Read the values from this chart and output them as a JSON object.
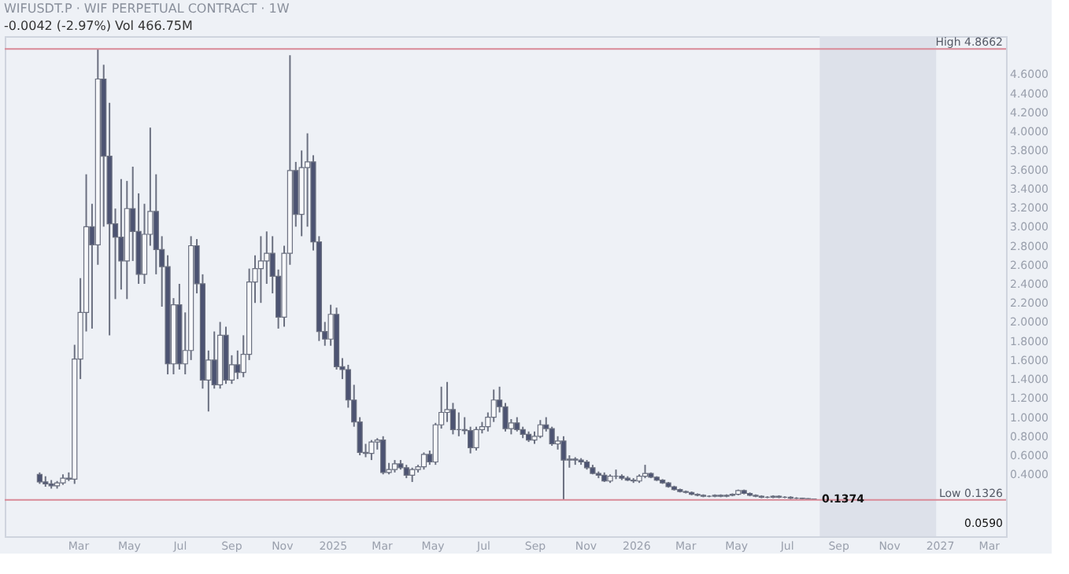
{
  "chart_data": {
    "type": "candlestick",
    "title": "WIFUSDT.P · WIF PERPETUAL CONTRACT · 1W",
    "subtitle": "-0.0042 (-2.97%)   Vol 466.75M",
    "x": [
      "2024-01-15",
      "2024-01-22",
      "2024-01-29",
      "2024-02-05",
      "2024-02-12",
      "2024-02-19",
      "2024-02-26",
      "2024-03-04",
      "2024-03-11",
      "2024-03-18",
      "2024-03-25",
      "2024-04-01",
      "2024-04-08",
      "2024-04-15",
      "2024-04-22",
      "2024-04-29",
      "2024-05-06",
      "2024-05-13",
      "2024-05-20",
      "2024-05-27",
      "2024-06-03",
      "2024-06-10",
      "2024-06-17",
      "2024-06-24",
      "2024-07-01",
      "2024-07-08",
      "2024-07-15",
      "2024-07-22",
      "2024-07-29",
      "2024-08-05",
      "2024-08-12",
      "2024-08-19",
      "2024-08-26",
      "2024-09-02",
      "2024-09-09",
      "2024-09-16",
      "2024-09-23",
      "2024-09-30",
      "2024-10-07",
      "2024-10-14",
      "2024-10-21",
      "2024-10-28",
      "2024-11-04",
      "2024-11-11",
      "2024-11-18",
      "2024-11-25",
      "2024-12-02",
      "2024-12-09",
      "2024-12-16",
      "2024-12-23",
      "2024-12-30",
      "2025-01-06",
      "2025-01-13",
      "2025-01-20",
      "2025-01-27",
      "2025-02-03",
      "2025-02-10",
      "2025-02-17",
      "2025-02-24",
      "2025-03-03",
      "2025-03-10",
      "2025-03-17",
      "2025-03-24",
      "2025-03-31",
      "2025-04-07",
      "2025-04-14",
      "2025-04-21",
      "2025-04-28",
      "2025-05-05",
      "2025-05-12",
      "2025-05-19",
      "2025-05-26",
      "2025-06-02",
      "2025-06-09",
      "2025-06-16",
      "2025-06-23",
      "2025-06-30",
      "2025-07-07",
      "2025-07-14",
      "2025-07-21",
      "2025-07-28",
      "2025-08-04",
      "2025-08-11",
      "2025-08-18",
      "2025-08-25",
      "2025-09-01",
      "2025-09-08",
      "2025-09-15",
      "2025-09-22",
      "2025-09-29",
      "2025-10-06",
      "2025-10-13",
      "2025-10-20",
      "2025-10-27",
      "2025-11-03",
      "2025-11-10",
      "2025-11-17",
      "2025-11-24",
      "2025-12-01",
      "2025-12-08",
      "2025-12-15",
      "2025-12-22",
      "2025-12-29",
      "2026-01-05",
      "2026-01-12",
      "2026-01-19",
      "2026-01-26",
      "2026-02-02",
      "2026-02-09",
      "2026-02-16",
      "2026-02-23",
      "2026-03-02",
      "2026-03-09",
      "2026-03-16",
      "2026-03-23",
      "2026-03-30",
      "2026-04-06",
      "2026-04-13",
      "2026-04-20",
      "2026-04-27",
      "2026-05-04",
      "2026-05-11",
      "2026-05-18",
      "2026-05-25",
      "2026-06-01",
      "2026-06-08",
      "2026-06-15",
      "2026-06-22",
      "2026-06-29",
      "2026-07-06",
      "2026-07-13",
      "2026-07-20",
      "2026-07-27",
      "2026-08-03"
    ],
    "ohlc": [
      [
        0.4,
        0.42,
        0.3,
        0.32
      ],
      [
        0.32,
        0.38,
        0.27,
        0.3
      ],
      [
        0.3,
        0.34,
        0.25,
        0.28
      ],
      [
        0.28,
        0.33,
        0.25,
        0.31
      ],
      [
        0.31,
        0.4,
        0.29,
        0.36
      ],
      [
        0.36,
        0.42,
        0.33,
        0.35
      ],
      [
        0.35,
        1.76,
        0.3,
        1.61
      ],
      [
        1.61,
        2.46,
        1.4,
        2.1
      ],
      [
        2.1,
        3.55,
        1.9,
        3.0
      ],
      [
        3.0,
        3.24,
        1.93,
        2.81
      ],
      [
        2.81,
        4.8662,
        2.6,
        4.55
      ],
      [
        4.55,
        4.7,
        3.0,
        3.74
      ],
      [
        3.74,
        4.3,
        1.86,
        3.03
      ],
      [
        3.03,
        3.19,
        2.24,
        2.89
      ],
      [
        2.89,
        3.5,
        2.34,
        2.64
      ],
      [
        2.64,
        3.48,
        2.24,
        3.19
      ],
      [
        3.19,
        3.63,
        2.64,
        2.95
      ],
      [
        2.95,
        3.35,
        2.4,
        2.5
      ],
      [
        2.5,
        3.24,
        2.4,
        2.92
      ],
      [
        2.92,
        4.04,
        2.8,
        3.16
      ],
      [
        3.16,
        3.55,
        2.5,
        2.76
      ],
      [
        2.76,
        2.9,
        2.16,
        2.58
      ],
      [
        2.58,
        2.7,
        1.45,
        1.56
      ],
      [
        1.56,
        2.25,
        1.45,
        2.18
      ],
      [
        2.18,
        2.4,
        1.5,
        1.56
      ],
      [
        1.56,
        2.1,
        1.45,
        1.7
      ],
      [
        1.7,
        2.9,
        1.6,
        2.8
      ],
      [
        2.8,
        2.87,
        2.3,
        2.4
      ],
      [
        2.4,
        2.5,
        1.3,
        1.39
      ],
      [
        1.39,
        1.7,
        1.06,
        1.6
      ],
      [
        1.6,
        1.9,
        1.3,
        1.34
      ],
      [
        1.34,
        2.0,
        1.3,
        1.86
      ],
      [
        1.86,
        1.95,
        1.35,
        1.39
      ],
      [
        1.39,
        1.65,
        1.35,
        1.55
      ],
      [
        1.55,
        1.7,
        1.4,
        1.47
      ],
      [
        1.47,
        1.86,
        1.42,
        1.66
      ],
      [
        1.66,
        2.56,
        1.6,
        2.42
      ],
      [
        2.42,
        2.7,
        2.2,
        2.56
      ],
      [
        2.56,
        2.9,
        2.2,
        2.64
      ],
      [
        2.64,
        2.95,
        2.4,
        2.72
      ],
      [
        2.72,
        2.9,
        2.3,
        2.48
      ],
      [
        2.48,
        2.55,
        1.93,
        2.05
      ],
      [
        2.05,
        2.8,
        1.95,
        2.72
      ],
      [
        2.72,
        4.8,
        2.6,
        3.59
      ],
      [
        3.59,
        3.68,
        3.0,
        3.13
      ],
      [
        3.13,
        3.8,
        2.9,
        3.62
      ],
      [
        3.62,
        3.98,
        3.0,
        3.68
      ],
      [
        3.68,
        3.75,
        2.75,
        2.84
      ],
      [
        2.84,
        2.9,
        1.8,
        1.9
      ],
      [
        1.9,
        2.0,
        1.75,
        1.82
      ],
      [
        1.82,
        2.18,
        1.75,
        2.08
      ],
      [
        2.08,
        2.15,
        1.5,
        1.53
      ],
      [
        1.53,
        1.62,
        1.4,
        1.5
      ],
      [
        1.5,
        1.55,
        1.1,
        1.18
      ],
      [
        1.18,
        1.34,
        0.9,
        0.95
      ],
      [
        0.95,
        1.0,
        0.6,
        0.63
      ],
      [
        0.63,
        0.72,
        0.58,
        0.62
      ],
      [
        0.62,
        0.76,
        0.55,
        0.74
      ],
      [
        0.74,
        0.78,
        0.66,
        0.76
      ],
      [
        0.76,
        0.8,
        0.4,
        0.42
      ],
      [
        0.42,
        0.52,
        0.4,
        0.45
      ],
      [
        0.45,
        0.55,
        0.42,
        0.51
      ],
      [
        0.51,
        0.55,
        0.45,
        0.47
      ],
      [
        0.47,
        0.5,
        0.36,
        0.39
      ],
      [
        0.39,
        0.47,
        0.32,
        0.45
      ],
      [
        0.45,
        0.5,
        0.42,
        0.48
      ],
      [
        0.48,
        0.63,
        0.45,
        0.61
      ],
      [
        0.61,
        0.65,
        0.5,
        0.53
      ],
      [
        0.53,
        0.94,
        0.5,
        0.92
      ],
      [
        0.92,
        1.32,
        0.88,
        1.05
      ],
      [
        1.05,
        1.37,
        0.95,
        1.08
      ],
      [
        1.08,
        1.15,
        0.82,
        0.87
      ],
      [
        0.87,
        1.05,
        0.8,
        0.87
      ],
      [
        0.87,
        1.0,
        0.82,
        0.86
      ],
      [
        0.86,
        0.9,
        0.62,
        0.68
      ],
      [
        0.68,
        0.9,
        0.65,
        0.87
      ],
      [
        0.87,
        0.95,
        0.83,
        0.9
      ],
      [
        0.9,
        1.05,
        0.85,
        1.0
      ],
      [
        1.0,
        1.29,
        0.95,
        1.18
      ],
      [
        1.18,
        1.32,
        1.05,
        1.11
      ],
      [
        1.11,
        1.15,
        0.85,
        0.88
      ],
      [
        0.88,
        0.98,
        0.82,
        0.94
      ],
      [
        0.94,
        1.0,
        0.85,
        0.87
      ],
      [
        0.87,
        0.9,
        0.78,
        0.82
      ],
      [
        0.82,
        0.85,
        0.74,
        0.76
      ],
      [
        0.76,
        0.85,
        0.72,
        0.8
      ],
      [
        0.8,
        0.97,
        0.78,
        0.92
      ],
      [
        0.92,
        1.0,
        0.85,
        0.88
      ],
      [
        0.88,
        0.9,
        0.7,
        0.72
      ],
      [
        0.72,
        0.8,
        0.66,
        0.75
      ],
      [
        0.75,
        0.8,
        0.1326,
        0.55
      ],
      [
        0.55,
        0.6,
        0.47,
        0.56
      ],
      [
        0.56,
        0.58,
        0.5,
        0.55
      ],
      [
        0.55,
        0.57,
        0.5,
        0.53
      ],
      [
        0.53,
        0.55,
        0.45,
        0.47
      ],
      [
        0.47,
        0.5,
        0.4,
        0.41
      ],
      [
        0.41,
        0.43,
        0.36,
        0.39
      ],
      [
        0.39,
        0.42,
        0.32,
        0.33
      ],
      [
        0.33,
        0.4,
        0.31,
        0.38
      ],
      [
        0.38,
        0.45,
        0.35,
        0.38
      ],
      [
        0.38,
        0.4,
        0.34,
        0.36
      ],
      [
        0.36,
        0.38,
        0.33,
        0.34
      ],
      [
        0.34,
        0.36,
        0.31,
        0.33
      ],
      [
        0.33,
        0.4,
        0.31,
        0.38
      ],
      [
        0.38,
        0.5,
        0.36,
        0.41
      ],
      [
        0.41,
        0.42,
        0.36,
        0.37
      ],
      [
        0.37,
        0.38,
        0.33,
        0.34
      ],
      [
        0.34,
        0.35,
        0.3,
        0.31
      ],
      [
        0.31,
        0.32,
        0.26,
        0.27
      ],
      [
        0.27,
        0.28,
        0.23,
        0.24
      ],
      [
        0.24,
        0.25,
        0.21,
        0.22
      ],
      [
        0.22,
        0.23,
        0.2,
        0.21
      ],
      [
        0.21,
        0.22,
        0.18,
        0.19
      ],
      [
        0.19,
        0.2,
        0.17,
        0.18
      ],
      [
        0.18,
        0.19,
        0.16,
        0.17
      ],
      [
        0.17,
        0.18,
        0.16,
        0.17
      ],
      [
        0.17,
        0.19,
        0.16,
        0.18
      ],
      [
        0.18,
        0.19,
        0.16,
        0.17
      ],
      [
        0.17,
        0.19,
        0.16,
        0.18
      ],
      [
        0.18,
        0.2,
        0.17,
        0.19
      ],
      [
        0.19,
        0.24,
        0.18,
        0.23
      ],
      [
        0.23,
        0.24,
        0.19,
        0.2
      ],
      [
        0.2,
        0.21,
        0.17,
        0.18
      ],
      [
        0.18,
        0.19,
        0.16,
        0.17
      ],
      [
        0.17,
        0.18,
        0.15,
        0.16
      ],
      [
        0.16,
        0.17,
        0.15,
        0.16
      ],
      [
        0.16,
        0.18,
        0.15,
        0.17
      ],
      [
        0.17,
        0.18,
        0.15,
        0.16
      ],
      [
        0.16,
        0.17,
        0.15,
        0.16
      ],
      [
        0.16,
        0.17,
        0.14,
        0.15
      ],
      [
        0.15,
        0.16,
        0.14,
        0.15
      ],
      [
        0.15,
        0.155,
        0.14,
        0.145
      ],
      [
        0.145,
        0.15,
        0.135,
        0.1416
      ],
      [
        0.1416,
        0.145,
        0.134,
        0.1374
      ]
    ],
    "xlim": [
      "2023-12-04",
      "2027-03-22"
    ],
    "xticks": [
      {
        "value": "2024-03-01",
        "label": "Mar"
      },
      {
        "value": "2024-05-01",
        "label": "May"
      },
      {
        "value": "2024-07-01",
        "label": "Jul"
      },
      {
        "value": "2024-09-01",
        "label": "Sep"
      },
      {
        "value": "2024-11-01",
        "label": "Nov"
      },
      {
        "value": "2025-01-01",
        "label": "2025"
      },
      {
        "value": "2025-03-01",
        "label": "Mar"
      },
      {
        "value": "2025-05-01",
        "label": "May"
      },
      {
        "value": "2025-07-01",
        "label": "Jul"
      },
      {
        "value": "2025-09-01",
        "label": "Sep"
      },
      {
        "value": "2025-11-01",
        "label": "Nov"
      },
      {
        "value": "2026-01-01",
        "label": "2026"
      },
      {
        "value": "2026-03-01",
        "label": "Mar"
      },
      {
        "value": "2026-05-01",
        "label": "May"
      },
      {
        "value": "2026-07-01",
        "label": "Jul"
      },
      {
        "value": "2026-09-01",
        "label": "Sep"
      },
      {
        "value": "2026-11-01",
        "label": "Nov"
      },
      {
        "value": "2027-01-01",
        "label": "2027"
      },
      {
        "value": "2027-03-01",
        "label": "Mar"
      }
    ],
    "ylim": [
      -0.25,
      5.0
    ],
    "yticks": [
      {
        "value": 0.4,
        "label": "0.4000"
      },
      {
        "value": 0.6,
        "label": "0.6000"
      },
      {
        "value": 0.8,
        "label": "0.8000"
      },
      {
        "value": 1.0,
        "label": "1.0000"
      },
      {
        "value": 1.2,
        "label": "1.2000"
      },
      {
        "value": 1.4,
        "label": "1.4000"
      },
      {
        "value": 1.6,
        "label": "1.6000"
      },
      {
        "value": 1.8,
        "label": "1.8000"
      },
      {
        "value": 2.0,
        "label": "2.0000"
      },
      {
        "value": 2.2,
        "label": "2.2000"
      },
      {
        "value": 2.4,
        "label": "2.4000"
      },
      {
        "value": 2.6,
        "label": "2.6000"
      },
      {
        "value": 2.8,
        "label": "2.8000"
      },
      {
        "value": 3.0,
        "label": "3.0000"
      },
      {
        "value": 3.2,
        "label": "3.2000"
      },
      {
        "value": 3.4,
        "label": "3.4000"
      },
      {
        "value": 3.6,
        "label": "3.6000"
      },
      {
        "value": 3.8,
        "label": "3.8000"
      },
      {
        "value": 4.0,
        "label": "4.0000"
      },
      {
        "value": 4.2,
        "label": "4.2000"
      },
      {
        "value": 4.4,
        "label": "4.4000"
      },
      {
        "value": 4.6,
        "label": "4.6000"
      }
    ],
    "ref_lines": [
      {
        "axis": "y",
        "value": 4.8662,
        "label": "High 4.8662",
        "color": "#d98a98"
      },
      {
        "axis": "y",
        "value": 0.1326,
        "label": "Low 0.1326",
        "color": "#d98a98"
      }
    ],
    "bands": [
      {
        "axis": "x",
        "from": "2026-08-10",
        "to": "2026-12-28",
        "color": "#dde1ea"
      }
    ],
    "annotations": [
      {
        "text": "0.1374",
        "x": "2026-08-03",
        "y": 0.1374
      },
      "0.0590"
    ],
    "grid": false
  }
}
